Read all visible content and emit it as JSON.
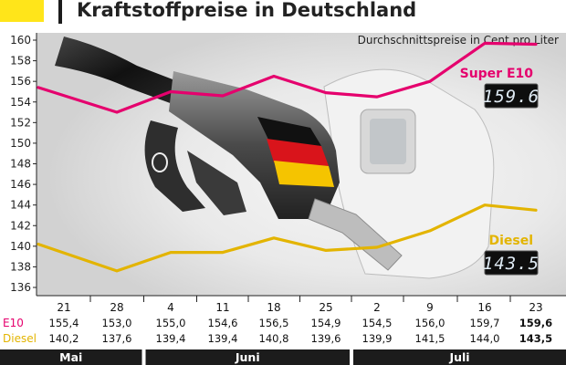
{
  "title": "Kraftstoffpreise in Deutschland",
  "subtitle": "Durchschnittspreise in Cent pro Liter",
  "colors": {
    "accent_yellow": "#ffe51a",
    "e10": "#e5006d",
    "diesel": "#e3b400",
    "month_bar": "#1c1c1c"
  },
  "icons": [
    "fuel-pump-nozzle-photo"
  ],
  "chart_data": {
    "type": "line",
    "title": "Kraftstoffpreise in Deutschland",
    "subtitle": "Durchschnittspreise in Cent pro Liter",
    "ylim": [
      136,
      160
    ],
    "yticks": [
      136,
      138,
      140,
      142,
      144,
      146,
      148,
      150,
      152,
      154,
      156,
      158,
      160
    ],
    "grid": false,
    "legend": "inline at line ends",
    "categories": [
      "21",
      "28",
      "4",
      "11",
      "18",
      "25",
      "2",
      "9",
      "16",
      "23"
    ],
    "months": [
      {
        "name": "Mai",
        "span": 2
      },
      {
        "name": "Juni",
        "span": 4
      },
      {
        "name": "Juli",
        "span": 4
      }
    ],
    "table_row_labels": [
      "E10",
      "Diesel"
    ],
    "series": [
      {
        "name": "Super E10",
        "row_label": "E10",
        "color": "#e5006d",
        "values": [
          155.4,
          153.0,
          155.0,
          154.6,
          156.5,
          154.9,
          154.5,
          156.0,
          159.7,
          159.6
        ],
        "labels": [
          "155,4",
          "153,0",
          "155,0",
          "154,6",
          "156,5",
          "154,9",
          "154,5",
          "156,0",
          "159,7",
          "159,6"
        ],
        "display": "159.6"
      },
      {
        "name": "Diesel",
        "row_label": "Diesel",
        "color": "#e3b400",
        "values": [
          140.2,
          137.6,
          139.4,
          139.4,
          140.8,
          139.6,
          139.9,
          141.5,
          144.0,
          143.5
        ],
        "labels": [
          "140,2",
          "137,6",
          "139,4",
          "139,4",
          "140,8",
          "139,6",
          "139,9",
          "141,5",
          "144,0",
          "143,5"
        ],
        "display": "143.5"
      }
    ]
  }
}
